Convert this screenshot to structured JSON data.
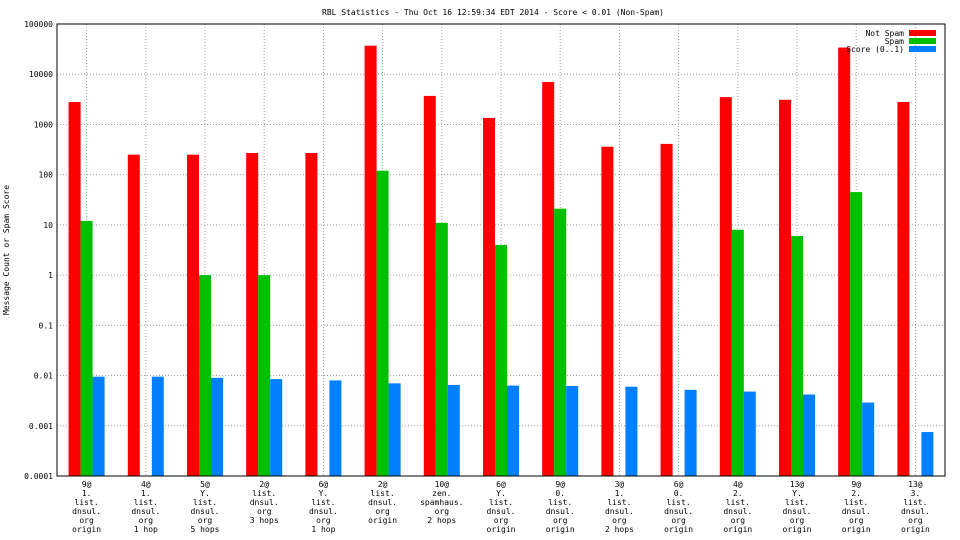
{
  "chart_data": {
    "type": "bar",
    "title": "RBL Statistics - Thu Oct 16 12:59:34 EDT 2014 - Score < 0.01 (Non-Spam)",
    "ylabel": "Message Count or Spam Score",
    "xlabel": "",
    "yscale": "log",
    "ylim": [
      0.0001,
      100000
    ],
    "yticks": [
      "100000",
      "10000",
      "1000",
      "100",
      "10",
      "1",
      "0.1",
      "0.01",
      "0.001",
      "0.0001"
    ],
    "grid": true,
    "legend_position": "top-right",
    "categories": [
      [
        "9@",
        "1.",
        "list.",
        "dnsul.",
        "org",
        "origin"
      ],
      [
        "4@",
        "1.",
        "list.",
        "dnsul.",
        "org",
        "1 hop"
      ],
      [
        "5@",
        "Y.",
        "list.",
        "dnsul.",
        "org",
        "5 hops"
      ],
      [
        "2@",
        "list.",
        "dnsul.",
        "org",
        "3 hops"
      ],
      [
        "6@",
        "Y.",
        "list.",
        "dnsul.",
        "org",
        "1 hop"
      ],
      [
        "2@",
        "list.",
        "dnsul.",
        "org",
        "origin"
      ],
      [
        "10@",
        "zen.",
        "spamhaus.",
        "org",
        "2 hops"
      ],
      [
        "6@",
        "Y.",
        "list.",
        "dnsul.",
        "org",
        "origin"
      ],
      [
        "9@",
        "0.",
        "list.",
        "dnsul.",
        "org",
        "origin"
      ],
      [
        "3@",
        "1.",
        "list.",
        "dnsul.",
        "org",
        "2 hops"
      ],
      [
        "6@",
        "0.",
        "list.",
        "dnsul.",
        "org",
        "origin"
      ],
      [
        "4@",
        "2.",
        "list.",
        "dnsul.",
        "org",
        "origin"
      ],
      [
        "13@",
        "Y.",
        "list.",
        "dnsul.",
        "org",
        "origin"
      ],
      [
        "9@",
        "2.",
        "list.",
        "dnsul.",
        "org",
        "origin"
      ],
      [
        "13@",
        "3.",
        "list.",
        "dnsul.",
        "org",
        "origin"
      ]
    ],
    "series": [
      {
        "name": "Not Spam",
        "color": "#ff0000",
        "values": [
          2800,
          250,
          250,
          270,
          270,
          37000,
          3700,
          1350,
          7000,
          360,
          410,
          3500,
          3100,
          34000,
          2800
        ]
      },
      {
        "name": "Spam",
        "color": "#00c000",
        "values": [
          12,
          0,
          1,
          1,
          0,
          120,
          11,
          4,
          21,
          0,
          0,
          8,
          6,
          45,
          0
        ]
      },
      {
        "name": "Score (0..1)",
        "color": "#0080ff",
        "values": [
          0.0095,
          0.0095,
          0.009,
          0.0085,
          0.008,
          0.007,
          0.0065,
          0.0063,
          0.0062,
          0.006,
          0.0052,
          0.0048,
          0.0042,
          0.0029,
          0.00075
        ]
      }
    ]
  }
}
